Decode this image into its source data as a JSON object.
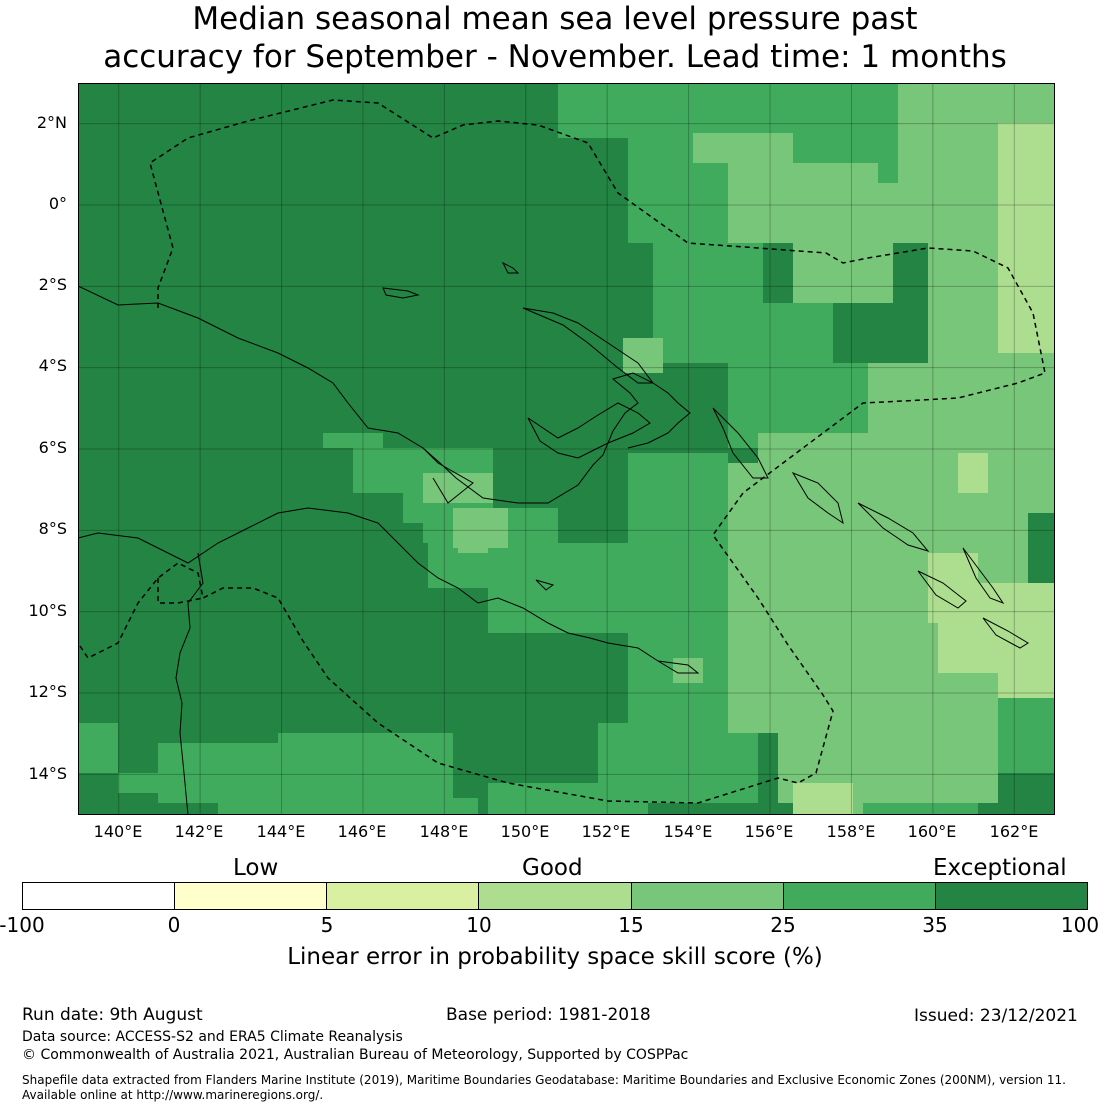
{
  "title": {
    "line1": "Median seasonal mean sea level pressure past",
    "line2": "accuracy for September - November. Lead time: 1 months"
  },
  "map": {
    "lat_labels": [
      "2°N",
      "0°",
      "2°S",
      "4°S",
      "6°S",
      "8°S",
      "10°S",
      "12°S",
      "14°S"
    ],
    "lon_labels": [
      "140°E",
      "142°E",
      "144°E",
      "146°E",
      "148°E",
      "150°E",
      "152°E",
      "154°E",
      "156°E",
      "158°E",
      "160°E",
      "162°E"
    ],
    "extent": {
      "lon_min": 139,
      "lon_max": 163,
      "lat_min": -15,
      "lat_max": 3
    },
    "grid_resolution_deg": 0.8,
    "background_category": "35 to 100",
    "gridlines": true,
    "coastline_color": "#000000",
    "eez_boundary": "dashed"
  },
  "colorbar": {
    "categories": {
      "low": "Low",
      "good": "Good",
      "exceptional": "Exceptional"
    },
    "ticks": [
      "-100",
      "0",
      "5",
      "10",
      "15",
      "25",
      "35",
      "100"
    ],
    "colors": [
      "#ffffff",
      "#ffffcc",
      "#d9f0a3",
      "#addd8e",
      "#78c679",
      "#41ab5d",
      "#238443"
    ],
    "label": "Linear error in probability space skill score (%)"
  },
  "footer": {
    "run_date": "Run date: 9th August",
    "base_period": "Base period: 1981-2018",
    "issued": "Issued: 23/12/2021",
    "data_source": "Data source: ACCESS-S2 and ERA5 Climate Reanalysis",
    "copyright": "© Commonwealth of Australia 2021, Australian Bureau of Meteorology, Supported by COSPPac",
    "shapefile_line1": "Shapefile data extracted from Flanders Marine Institute (2019), Maritime Boundaries Geodatabase: Maritime Boundaries and Exclusive Economic Zones (200NM), version 11.",
    "shapefile_line2": "Available online at http://www.marineregions.org/."
  }
}
